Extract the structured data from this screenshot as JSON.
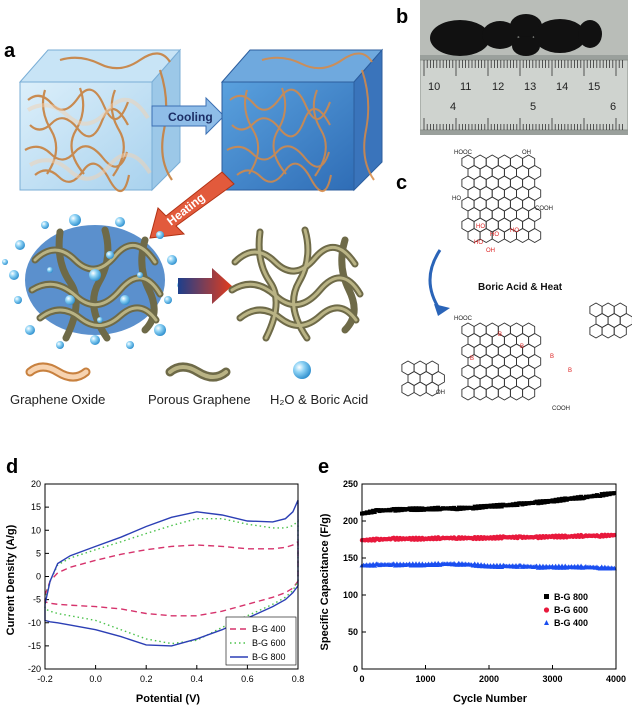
{
  "panels": {
    "a": "a",
    "b": "b",
    "c": "c",
    "d": "d",
    "e": "e"
  },
  "panel_a": {
    "cooling_label": "Cooling",
    "heating_label": "Heating",
    "legend": [
      "Graphene Oxide",
      "Porous Graphene",
      "H₂O & Boric Acid"
    ]
  },
  "panel_b": {
    "ruler_top_numbers": [
      "10",
      "11",
      "12",
      "13",
      "14",
      "15"
    ],
    "ruler_bottom_numbers": [
      "4",
      "5",
      "6"
    ]
  },
  "panel_c": {
    "reaction_label": "Boric Acid & Heat",
    "groups": [
      "HOOC",
      "OH",
      "COOH",
      "HO",
      "O",
      "B"
    ]
  },
  "chart_data": [
    {
      "id": "d",
      "type": "line",
      "xlabel": "Potential (V)",
      "ylabel": "Current Density (A/g)",
      "xlim": [
        -0.2,
        0.8
      ],
      "ylim": [
        -20,
        20
      ],
      "xticks": [
        "-0.2",
        "0.0",
        "0.2",
        "0.4",
        "0.6",
        "0.8"
      ],
      "yticks": [
        "-20",
        "-15",
        "-10",
        "-5",
        "0",
        "5",
        "10",
        "15",
        "20"
      ],
      "legend_position": "bottom-right",
      "series": [
        {
          "name": "B-G 400",
          "color": "#d6336c",
          "dash": "dashed",
          "x": [
            -0.2,
            -0.18,
            -0.15,
            -0.1,
            0.0,
            0.1,
            0.2,
            0.3,
            0.4,
            0.5,
            0.6,
            0.7,
            0.75,
            0.78,
            0.8,
            0.8,
            0.78,
            0.75,
            0.7,
            0.6,
            0.5,
            0.4,
            0.3,
            0.2,
            0.1,
            0.0,
            -0.1,
            -0.15,
            -0.18,
            -0.2,
            -0.2
          ],
          "y": [
            -4,
            -1,
            0.8,
            2,
            3.5,
            4.8,
            5.8,
            6.5,
            6.8,
            6.5,
            6.0,
            6.0,
            6.3,
            6.8,
            7.5,
            -1,
            -2.5,
            -3.5,
            -4.5,
            -6.0,
            -7.5,
            -8.5,
            -8.5,
            -8.0,
            -7.0,
            -6.5,
            -6.2,
            -6.0,
            -5.8,
            -5.5,
            -4
          ]
        },
        {
          "name": "B-G 600",
          "color": "#4cc24c",
          "dash": "dotted",
          "x": [
            -0.2,
            -0.18,
            -0.15,
            -0.1,
            0.0,
            0.1,
            0.2,
            0.3,
            0.4,
            0.5,
            0.6,
            0.7,
            0.75,
            0.78,
            0.8,
            0.8,
            0.78,
            0.75,
            0.7,
            0.6,
            0.5,
            0.4,
            0.3,
            0.2,
            0.1,
            0.0,
            -0.1,
            -0.15,
            -0.18,
            -0.2,
            -0.2
          ],
          "y": [
            -5,
            -1,
            2.5,
            4,
            5.8,
            7.5,
            9.3,
            11,
            12.5,
            12.5,
            11.3,
            10.5,
            10.5,
            11,
            12,
            -1,
            -3,
            -4.5,
            -6,
            -8.5,
            -11,
            -13.8,
            -14.5,
            -13.5,
            -11.5,
            -9.5,
            -8.5,
            -8,
            -7.5,
            -7,
            -5
          ]
        },
        {
          "name": "B-G 800",
          "color": "#2c3fb5",
          "dash": "solid",
          "x": [
            -0.2,
            -0.18,
            -0.15,
            -0.1,
            0.0,
            0.1,
            0.2,
            0.3,
            0.4,
            0.5,
            0.6,
            0.7,
            0.75,
            0.78,
            0.8,
            0.8,
            0.78,
            0.75,
            0.7,
            0.6,
            0.5,
            0.4,
            0.3,
            0.2,
            0.1,
            0.0,
            -0.1,
            -0.15,
            -0.18,
            -0.2,
            -0.2
          ],
          "y": [
            -6,
            -1,
            2.8,
            4.5,
            6.5,
            8.5,
            10.8,
            12.8,
            14.0,
            13.3,
            12.0,
            11.8,
            12.5,
            14,
            16.5,
            -2,
            -3.5,
            -5,
            -6.5,
            -9,
            -11.5,
            -13.5,
            -15,
            -14.8,
            -13,
            -11.5,
            -10.5,
            -10,
            -9.8,
            -9.5,
            -6
          ]
        }
      ]
    },
    {
      "id": "e",
      "type": "scatter",
      "xlabel": "Cycle Number",
      "ylabel": "Specific Capacitance (F/g)",
      "xlim": [
        0,
        4000
      ],
      "ylim": [
        0,
        250
      ],
      "xticks": [
        "0",
        "1000",
        "2000",
        "3000",
        "4000"
      ],
      "yticks": [
        "0",
        "50",
        "100",
        "150",
        "200",
        "250"
      ],
      "legend_position": "bottom-right",
      "series": [
        {
          "name": "B-G 800",
          "color": "#000000",
          "marker": "square",
          "x": [
            0,
            250,
            500,
            750,
            1000,
            1250,
            1500,
            1750,
            2000,
            2250,
            2500,
            2750,
            3000,
            3250,
            3500,
            3750,
            4000
          ],
          "y": [
            210,
            214,
            215,
            216,
            216,
            217,
            217,
            218,
            220,
            221,
            223,
            225,
            227,
            230,
            232,
            235,
            238
          ]
        },
        {
          "name": "B-G 600",
          "color": "#e8193c",
          "marker": "circle",
          "x": [
            0,
            250,
            500,
            750,
            1000,
            1250,
            1500,
            1750,
            2000,
            2250,
            2500,
            2750,
            3000,
            3250,
            3500,
            3750,
            4000
          ],
          "y": [
            174,
            175,
            176,
            176,
            176,
            177,
            177,
            177,
            177,
            178,
            178,
            178,
            179,
            179,
            180,
            180,
            181
          ]
        },
        {
          "name": "B-G 400",
          "color": "#1a4ef0",
          "marker": "triangle",
          "x": [
            0,
            250,
            500,
            750,
            1000,
            1250,
            1500,
            1750,
            2000,
            2250,
            2500,
            2750,
            3000,
            3250,
            3500,
            3750,
            4000
          ],
          "y": [
            140,
            141,
            141,
            141,
            141,
            142,
            142,
            141,
            139,
            139,
            139,
            138,
            138,
            138,
            138,
            137,
            136
          ]
        }
      ]
    }
  ]
}
